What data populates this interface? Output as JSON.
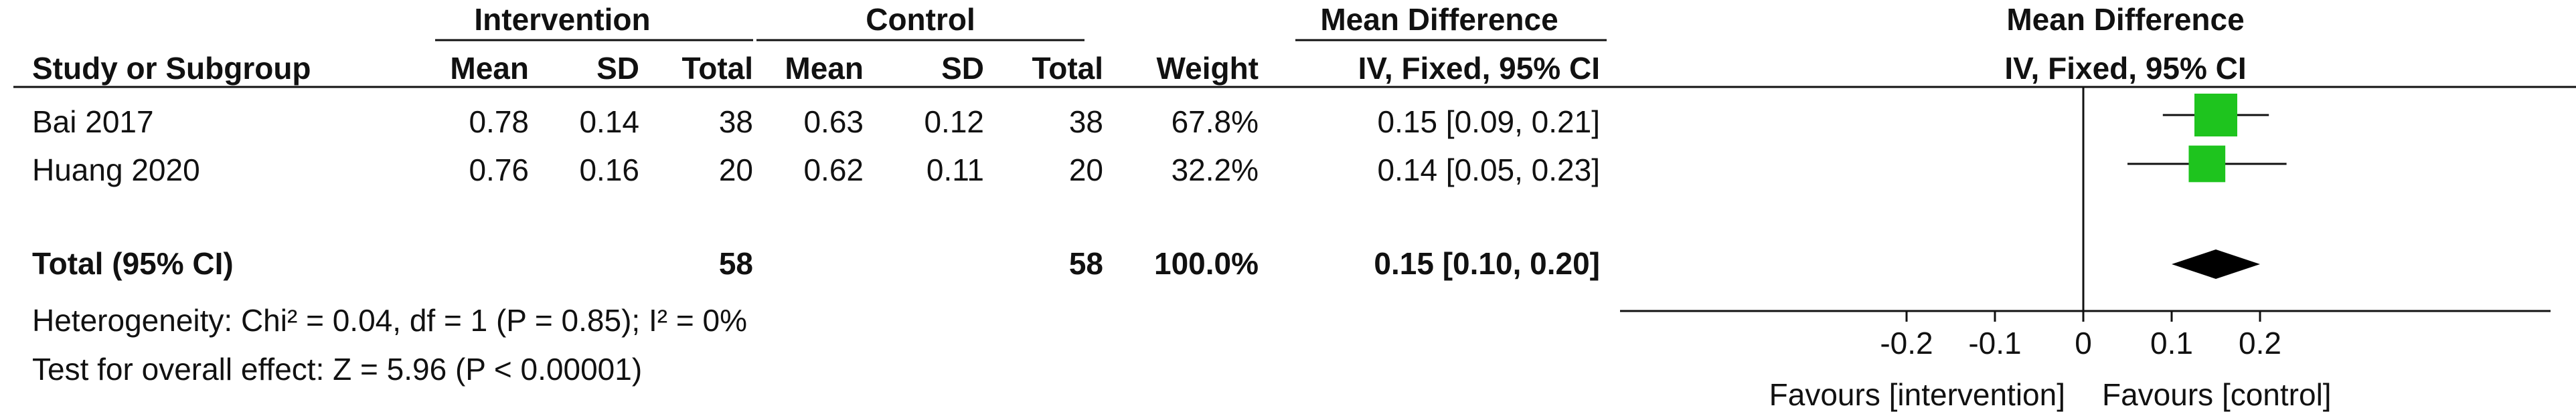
{
  "header": {
    "group_intervention": "Intervention",
    "group_control": "Control",
    "group_md": "Mean Difference",
    "plot_title": "Mean Difference",
    "plot_subtitle": "IV, Fixed, 95% CI",
    "columns": {
      "study": "Study or Subgroup",
      "int_mean": "Mean",
      "int_sd": "SD",
      "int_total": "Total",
      "ctl_mean": "Mean",
      "ctl_sd": "SD",
      "ctl_total": "Total",
      "weight": "Weight",
      "md": "IV, Fixed, 95% CI"
    }
  },
  "rows": [
    {
      "study": "Bai 2017",
      "int_mean": "0.78",
      "int_sd": "0.14",
      "int_total": "38",
      "ctl_mean": "0.63",
      "ctl_sd": "0.12",
      "ctl_total": "38",
      "weight": "67.8%",
      "md": "0.15 [0.09, 0.21]"
    },
    {
      "study": "Huang 2020",
      "int_mean": "0.76",
      "int_sd": "0.16",
      "int_total": "20",
      "ctl_mean": "0.62",
      "ctl_sd": "0.11",
      "ctl_total": "20",
      "weight": "32.2%",
      "md": "0.14 [0.05, 0.23]"
    }
  ],
  "total": {
    "study": "Total (95% CI)",
    "int_total": "58",
    "ctl_total": "58",
    "weight": "100.0%",
    "md": "0.15 [0.10, 0.20]"
  },
  "footnotes": {
    "heterogeneity": "Heterogeneity: Chi² = 0.04, df = 1 (P = 0.85); I² = 0%",
    "overall": "Test for overall effect: Z = 5.96 (P < 0.00001)"
  },
  "axis_labels": {
    "favours_left": "Favours [intervention]",
    "favours_right": "Favours [control]"
  },
  "colors": {
    "square": "#1ec41e",
    "diamond": "#000000",
    "text": "#111111"
  },
  "chart_data": {
    "type": "forest",
    "title": "Mean Difference",
    "subtitle": "IV, Fixed, 95% CI",
    "xlim": [
      -0.25,
      0.25
    ],
    "xticks": [
      -0.2,
      -0.1,
      0,
      0.1,
      0.2
    ],
    "xtick_labels": [
      "-0.2",
      "-0.1",
      "0",
      "0.1",
      "0.2"
    ],
    "studies": [
      {
        "name": "Bai 2017",
        "md": 0.15,
        "lo": 0.09,
        "hi": 0.21,
        "weight": 67.8
      },
      {
        "name": "Huang 2020",
        "md": 0.14,
        "lo": 0.05,
        "hi": 0.23,
        "weight": 32.2
      }
    ],
    "pooled": {
      "name": "Total (95% CI)",
      "md": 0.15,
      "lo": 0.1,
      "hi": 0.2
    }
  }
}
